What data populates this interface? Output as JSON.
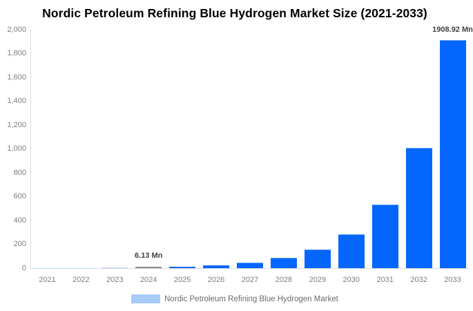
{
  "title": "Nordic Petroleum Refining Blue Hydrogen Market Size (2021-2033)",
  "chart_data": {
    "type": "bar",
    "title": "Nordic Petroleum Refining Blue Hydrogen Market Size (2021-2033)",
    "categories": [
      "2021",
      "2022",
      "2023",
      "2024",
      "2025",
      "2026",
      "2027",
      "2028",
      "2029",
      "2030",
      "2031",
      "2032",
      "2033"
    ],
    "values": [
      1,
      2,
      3,
      6.13,
      12,
      22,
      41,
      79,
      149,
      280,
      530,
      1005,
      1908.92
    ],
    "unit": "Mn",
    "series_name": "Nordic Petroleum Refining Blue Hydrogen Market",
    "xlabel": "",
    "ylabel": "",
    "ylim": [
      0,
      2000
    ],
    "ytick_labels": [
      "2,000",
      "1,800",
      "1,600",
      "1,400",
      "1,200",
      "1,000",
      "800",
      "600",
      "400",
      "200",
      "0"
    ],
    "grid": false,
    "legend_position": "bottom",
    "highlight_category": "2024",
    "point_labels": [
      {
        "category": "2024",
        "text": "6.13 Mn"
      },
      {
        "category": "2033",
        "text": "1908.92 Mn"
      }
    ]
  },
  "legend": {
    "label": "Nordic Petroleum Refining Blue Hydrogen Market"
  },
  "colors": {
    "bar": "#0566fe",
    "bar_top_edge": "#5e9cf8",
    "highlight_bar": "#8a8a8a",
    "tiny_bar": "#bdd7f6",
    "legend_swatch": "#a6cbf8",
    "axis_line": "#d9d9d9",
    "tick_text": "#7d7d7d",
    "legend_text": "#6b6b6b",
    "point_label_text": "#3f3f3f",
    "title_text": "#000000"
  }
}
